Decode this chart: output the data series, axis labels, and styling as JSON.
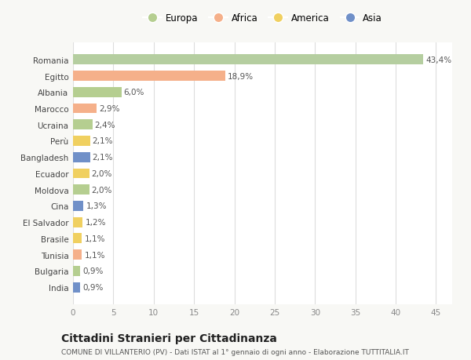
{
  "categories": [
    "Romania",
    "Egitto",
    "Albania",
    "Marocco",
    "Ucraina",
    "Perù",
    "Bangladesh",
    "Ecuador",
    "Moldova",
    "Cina",
    "El Salvador",
    "Brasile",
    "Tunisia",
    "Bulgaria",
    "India"
  ],
  "values": [
    43.4,
    18.9,
    6.0,
    2.9,
    2.4,
    2.1,
    2.1,
    2.0,
    2.0,
    1.3,
    1.2,
    1.1,
    1.1,
    0.9,
    0.9
  ],
  "labels": [
    "43,4%",
    "18,9%",
    "6,0%",
    "2,9%",
    "2,4%",
    "2,1%",
    "2,1%",
    "2,0%",
    "2,0%",
    "1,3%",
    "1,2%",
    "1,1%",
    "1,1%",
    "0,9%",
    "0,9%"
  ],
  "colors": [
    "#b5ceA0",
    "#f5b08a",
    "#b5ce90",
    "#f5b08a",
    "#b5ce90",
    "#f0d060",
    "#7090c8",
    "#f0d060",
    "#b5ce90",
    "#7090c8",
    "#f0d060",
    "#f0d060",
    "#f5b08a",
    "#b5ce90",
    "#7090c8"
  ],
  "legend_labels": [
    "Europa",
    "Africa",
    "America",
    "Asia"
  ],
  "legend_colors": [
    "#b5ce90",
    "#f5b08a",
    "#f0d060",
    "#7090c8"
  ],
  "title": "Cittadini Stranieri per Cittadinanza",
  "subtitle": "COMUNE DI VILLANTERIO (PV) - Dati ISTAT al 1° gennaio di ogni anno - Elaborazione TUTTITALIA.IT",
  "xlim": [
    0,
    47
  ],
  "xticks": [
    0,
    5,
    10,
    15,
    20,
    25,
    30,
    35,
    40,
    45
  ],
  "bg_color": "#f8f8f5",
  "bar_bg_color": "#ffffff",
  "label_fontsize": 7.5,
  "tick_label_fontsize": 7.5,
  "title_fontsize": 10,
  "subtitle_fontsize": 6.5
}
